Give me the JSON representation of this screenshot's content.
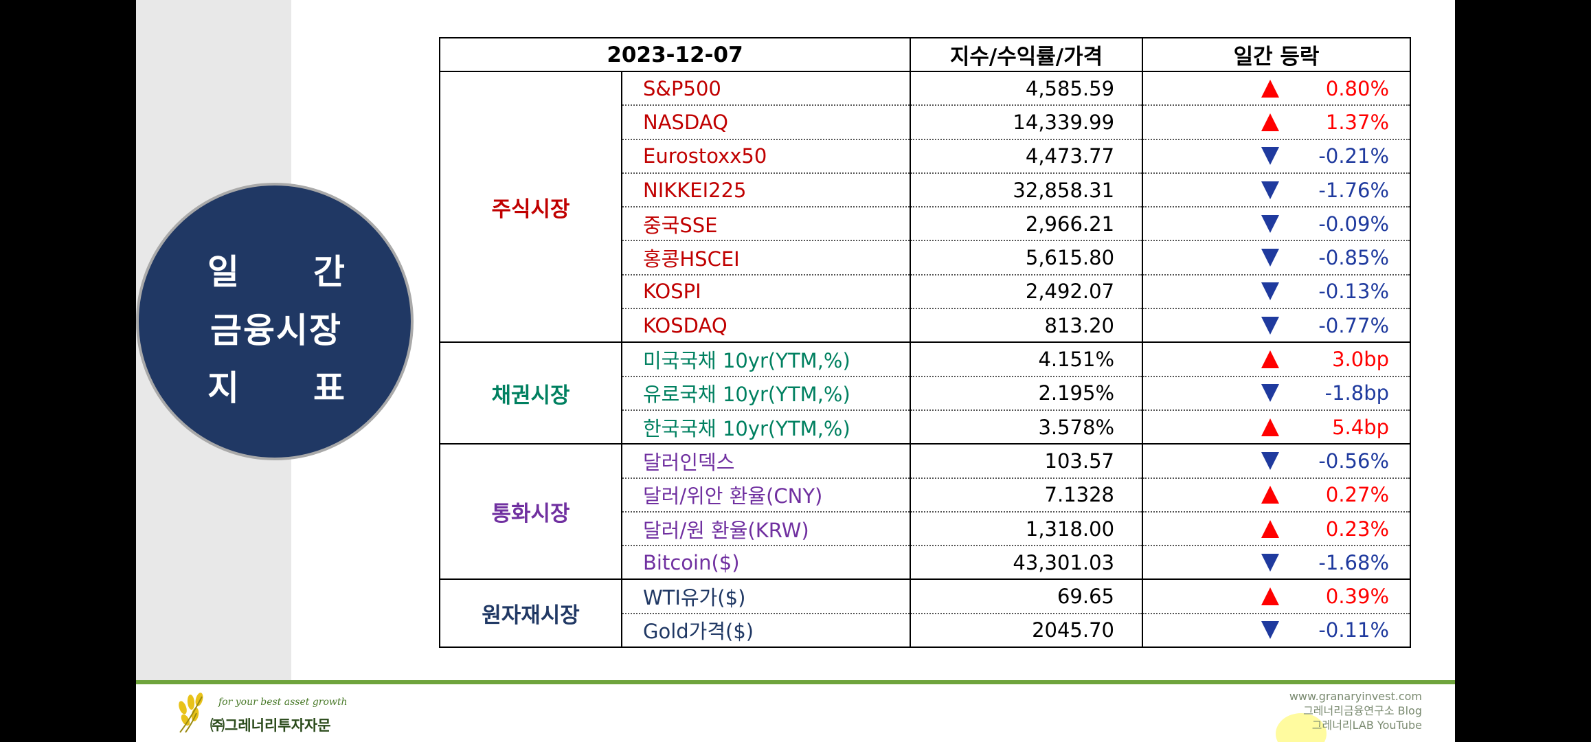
{
  "title": {
    "line1": [
      "일",
      "간"
    ],
    "line2": "금융시장",
    "line3": [
      "지",
      "표"
    ]
  },
  "table": {
    "header": {
      "date": "2023-12-07",
      "value": "지수/수익률/가격",
      "change": "일간 등락"
    },
    "groups": [
      {
        "category": "주식시장",
        "color": "#c00000",
        "rows": [
          {
            "name": "S&P500",
            "value": "4,585.59",
            "dir": "up",
            "change": "0.80%"
          },
          {
            "name": "NASDAQ",
            "value": "14,339.99",
            "dir": "up",
            "change": "1.37%"
          },
          {
            "name": "Eurostoxx50",
            "value": "4,473.77",
            "dir": "down",
            "change": "-0.21%"
          },
          {
            "name": "NIKKEI225",
            "value": "32,858.31",
            "dir": "down",
            "change": "-1.76%"
          },
          {
            "name": "중국SSE",
            "value": "2,966.21",
            "dir": "down",
            "change": "-0.09%"
          },
          {
            "name": "홍콩HSCEI",
            "value": "5,615.80",
            "dir": "down",
            "change": "-0.85%"
          },
          {
            "name": "KOSPI",
            "value": "2,492.07",
            "dir": "down",
            "change": "-0.13%"
          },
          {
            "name": "KOSDAQ",
            "value": "813.20",
            "dir": "down",
            "change": "-0.77%"
          }
        ]
      },
      {
        "category": "채권시장",
        "color": "#008060",
        "rows": [
          {
            "name": "미국국채 10yr(YTM,%)",
            "value": "4.151%",
            "dir": "up",
            "change": "3.0bp"
          },
          {
            "name": "유로국채 10yr(YTM,%)",
            "value": "2.195%",
            "dir": "down",
            "change": "-1.8bp"
          },
          {
            "name": "한국국채 10yr(YTM,%)",
            "value": "3.578%",
            "dir": "up",
            "change": "5.4bp"
          }
        ]
      },
      {
        "category": "통화시장",
        "color": "#7030a0",
        "rows": [
          {
            "name": "달러인덱스",
            "value": "103.57",
            "dir": "down",
            "change": "-0.56%"
          },
          {
            "name": "달러/위안 환율(CNY)",
            "value": "7.1328",
            "dir": "up",
            "change": "0.27%"
          },
          {
            "name": "달러/원 환율(KRW)",
            "value": "1,318.00",
            "dir": "up",
            "change": "0.23%"
          },
          {
            "name": "Bitcoin($)",
            "value": "43,301.03",
            "dir": "down",
            "change": "-1.68%"
          }
        ]
      },
      {
        "category": "원자재시장",
        "color": "#203864",
        "rows": [
          {
            "name": "WTI유가($)",
            "value": "69.65",
            "dir": "up",
            "change": "0.39%"
          },
          {
            "name": "Gold가격($)",
            "value": "2045.70",
            "dir": "down",
            "change": "-0.11%"
          }
        ]
      }
    ]
  },
  "colors": {
    "up": "#ff0000",
    "down": "#1f3a9e",
    "circle": "#203864",
    "footer_line": "#6fa43c"
  },
  "icons": {
    "up": "triangle-up-icon",
    "down": "triangle-down-icon",
    "logo": "wheat-logo-icon"
  },
  "footer": {
    "tagline": "for your best asset growth",
    "company": "㈜그레너리투자자문",
    "website": "www.granaryinvest.com",
    "blog": "그레너리금융연구소 Blog",
    "youtube": "그레너리LAB YouTube"
  }
}
